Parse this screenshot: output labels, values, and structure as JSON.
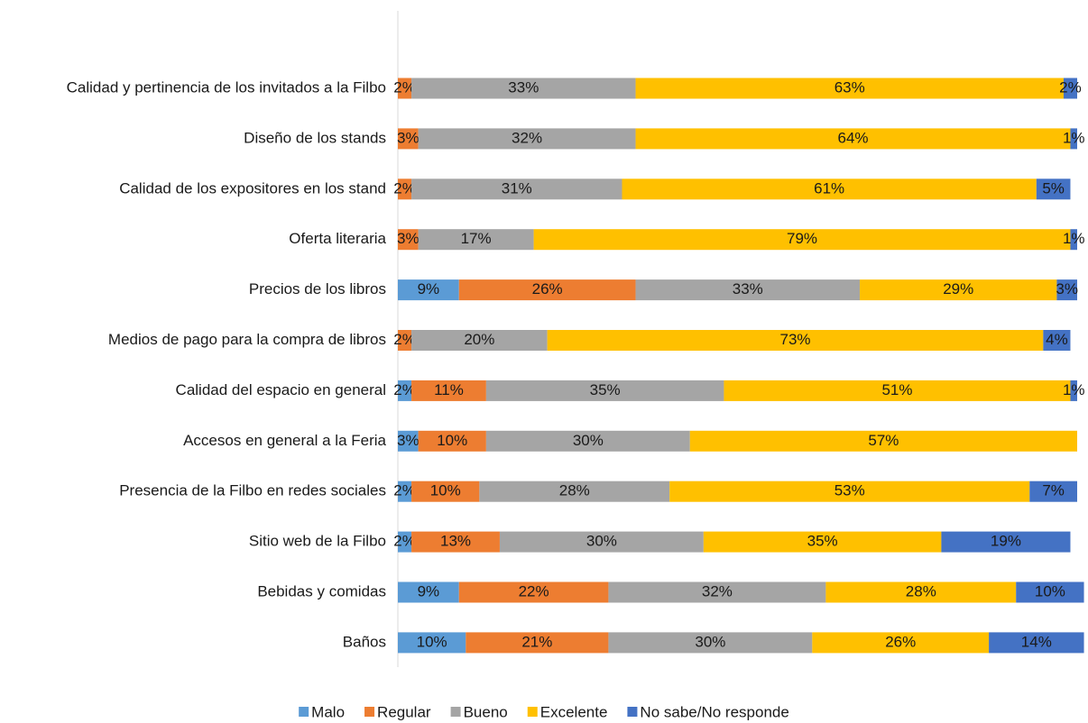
{
  "chart_data": {
    "type": "stacked-bar-horizontal",
    "categories": [
      "Calidad y pertinencia de los invitados a la Filbo",
      "Diseño de los stands",
      "Calidad de los expositores en los stand",
      "Oferta literaria",
      "Precios de los libros",
      "Medios de pago para la compra de libros",
      "Calidad del espacio en general",
      "Accesos en general a la Feria",
      "Presencia de la Filbo en redes sociales",
      "Sitio web de la Filbo",
      "Bebidas y comidas",
      "Baños"
    ],
    "xlim": [
      0,
      100
    ],
    "series": [
      {
        "name": "Malo",
        "color": "#5b9bd5",
        "values": [
          null,
          null,
          null,
          null,
          9,
          null,
          2,
          3,
          2,
          2,
          9,
          10
        ],
        "value_labels": [
          null,
          null,
          null,
          null,
          "9%",
          null,
          "2%",
          "3%",
          "2%",
          "2%",
          "9%",
          "10%"
        ]
      },
      {
        "name": "Regular",
        "color": "#ed7d31",
        "values": [
          2,
          3,
          2,
          3,
          26,
          2,
          11,
          10,
          10,
          13,
          22,
          21
        ],
        "value_labels": [
          "2%",
          "3%",
          "2%",
          "3%",
          "26%",
          "2%",
          "11%",
          "10%",
          "10%",
          "13%",
          "22%",
          "21%"
        ]
      },
      {
        "name": "Bueno",
        "color": "#a5a5a5",
        "values": [
          33,
          32,
          31,
          17,
          33,
          20,
          35,
          30,
          28,
          30,
          32,
          30
        ],
        "value_labels": [
          "33%",
          "32%",
          "31%",
          "17%",
          "33%",
          "20%",
          "35%",
          "30%",
          "28%",
          "30%",
          "32%",
          "30%"
        ]
      },
      {
        "name": "Excelente",
        "color": "#ffc000",
        "values": [
          63,
          64,
          61,
          79,
          29,
          73,
          51,
          57,
          53,
          35,
          28,
          26
        ],
        "value_labels": [
          "63%",
          "64%",
          "61%",
          "79%",
          "29%",
          "73%",
          "51%",
          "57%",
          "53%",
          "35%",
          "28%",
          "26%"
        ]
      },
      {
        "name": "No sabe/No responde",
        "color": "#4472c4",
        "values": [
          2,
          1,
          5,
          1,
          3,
          4,
          1,
          null,
          7,
          19,
          10,
          14
        ],
        "value_labels": [
          "2%",
          "1%",
          "5%",
          "1%",
          "3%",
          "4%",
          "1%",
          null,
          "7%",
          "19%",
          "10%",
          "14%"
        ]
      }
    ]
  }
}
